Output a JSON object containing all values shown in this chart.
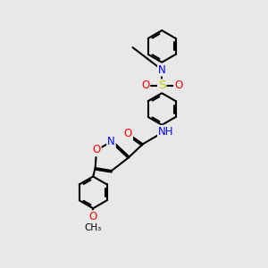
{
  "bg_color": "#e8e8e8",
  "bond_color": "#000000",
  "bond_width": 1.5,
  "dbo": 0.055,
  "atom_colors": {
    "N": "#0000FF",
    "O": "#FF0000",
    "S": "#cccc00",
    "C": "#000000"
  },
  "fs": 8.5,
  "fs_small": 7.5,
  "fig_size": [
    3.0,
    3.0
  ],
  "xlim": [
    0,
    10
  ],
  "ylim": [
    0,
    10
  ]
}
